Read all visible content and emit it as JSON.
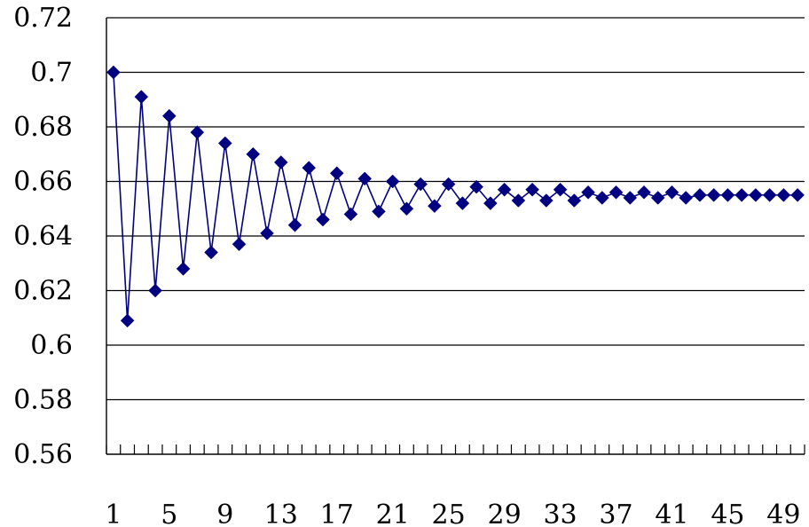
{
  "chart_data": {
    "type": "line",
    "title": "",
    "xlabel": "",
    "ylabel": "",
    "ylim": [
      0.56,
      0.72
    ],
    "y_ticks": [
      "0.56",
      "0.58",
      "0.6",
      "0.62",
      "0.64",
      "0.66",
      "0.68",
      "0.7",
      "0.72"
    ],
    "x_tick_labels": [
      "1",
      "5",
      "9",
      "13",
      "17",
      "21",
      "25",
      "29",
      "33",
      "37",
      "41",
      "45",
      "49"
    ],
    "grid": "horizontal",
    "legend": "none",
    "x": [
      1,
      2,
      3,
      4,
      5,
      6,
      7,
      8,
      9,
      10,
      11,
      12,
      13,
      14,
      15,
      16,
      17,
      18,
      19,
      20,
      21,
      22,
      23,
      24,
      25,
      26,
      27,
      28,
      29,
      30,
      31,
      32,
      33,
      34,
      35,
      36,
      37,
      38,
      39,
      40,
      41,
      42,
      43,
      44,
      45,
      46,
      47,
      48,
      49,
      50
    ],
    "series": [
      {
        "color": "#000080",
        "marker": "diamond",
        "values": [
          0.7,
          0.609,
          0.691,
          0.62,
          0.684,
          0.628,
          0.678,
          0.634,
          0.674,
          0.637,
          0.67,
          0.641,
          0.667,
          0.644,
          0.665,
          0.646,
          0.663,
          0.648,
          0.661,
          0.649,
          0.66,
          0.65,
          0.659,
          0.651,
          0.659,
          0.652,
          0.658,
          0.652,
          0.657,
          0.653,
          0.657,
          0.653,
          0.657,
          0.653,
          0.656,
          0.654,
          0.656,
          0.654,
          0.656,
          0.654,
          0.656,
          0.654,
          0.655,
          0.655,
          0.655,
          0.655,
          0.655,
          0.655,
          0.655,
          0.655
        ]
      }
    ]
  }
}
